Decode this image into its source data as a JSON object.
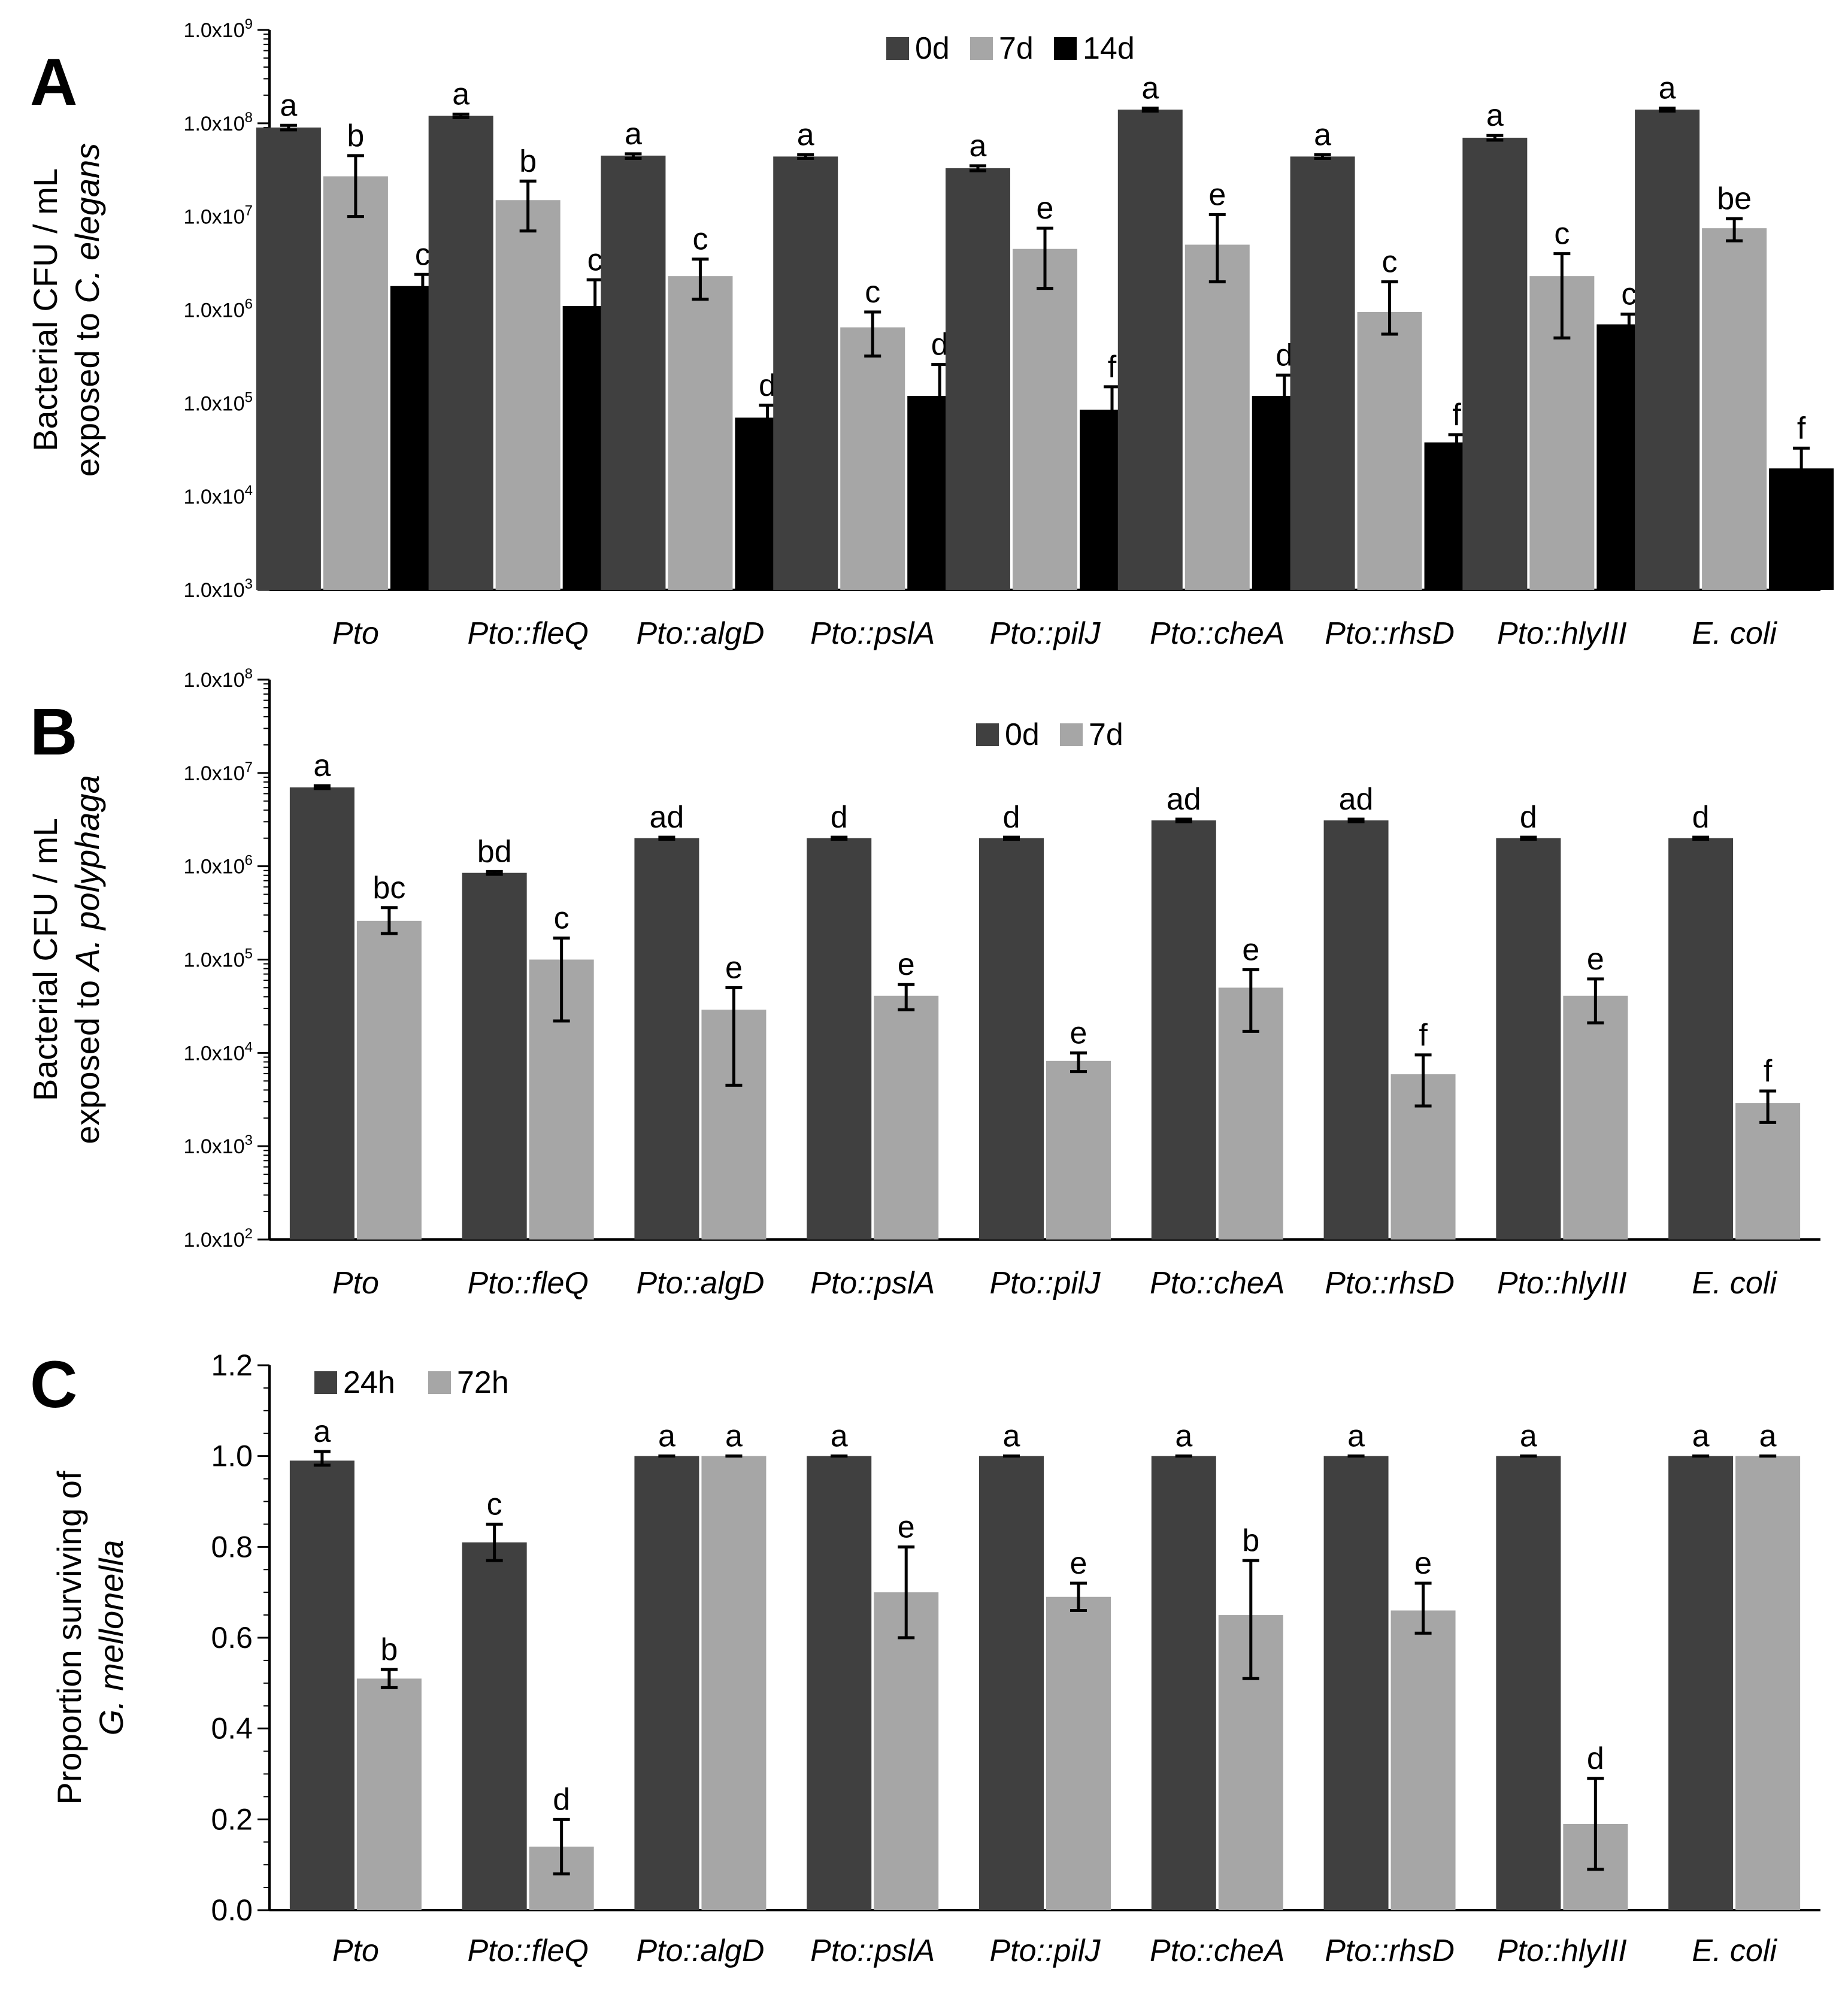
{
  "colors": {
    "dark": "#404040",
    "light": "#a6a6a6",
    "black": "#000000"
  },
  "chart_data": [
    {
      "panel": "A",
      "type": "bar",
      "scale": "log",
      "ylim": [
        1000,
        1000000000
      ],
      "yticks": [
        {
          "value": 1000,
          "base": "1.0x10",
          "exp": "3"
        },
        {
          "value": 10000,
          "base": "1.0x10",
          "exp": "4"
        },
        {
          "value": 100000,
          "base": "1.0x10",
          "exp": "5"
        },
        {
          "value": 1000000,
          "base": "1.0x10",
          "exp": "6"
        },
        {
          "value": 10000000,
          "base": "1.0x10",
          "exp": "7"
        },
        {
          "value": 100000000,
          "base": "1.0x10",
          "exp": "8"
        },
        {
          "value": 1000000000,
          "base": "1.0x10",
          "exp": "9"
        }
      ],
      "ylabel": [
        "Bacterial CFU / mL",
        "exposed to "
      ],
      "ylabel_italic": "C. elegans",
      "categories": [
        "Pto",
        "Pto::fleQ",
        "Pto::algD",
        "Pto::pslA",
        "Pto::pilJ",
        "Pto::cheA",
        "Pto::rhsD",
        "Pto::hlyIII",
        "E. coli"
      ],
      "series": [
        {
          "name": "0d",
          "color": "#404040",
          "values": [
            90000000,
            120000000,
            45000000,
            44000000,
            33000000,
            140000000,
            44000000,
            70000000,
            140000000
          ],
          "err_low": [
            85000000,
            115000000,
            42000000,
            42000000,
            31000000,
            135000000,
            42000000,
            66000000,
            135000000
          ],
          "err_high": [
            95000000,
            125000000,
            47000000,
            46000000,
            35000000,
            145000000,
            46000000,
            74000000,
            145000000
          ],
          "labels": [
            "a",
            "a",
            "a",
            "a",
            "a",
            "a",
            "a",
            "a",
            "a"
          ]
        },
        {
          "name": "7d",
          "color": "#a6a6a6",
          "values": [
            27000000,
            15000000,
            2300000,
            650000,
            4500000,
            5000000,
            950000,
            2300000,
            7500000
          ],
          "err_low": [
            10000000,
            7000000,
            1300000,
            320000,
            1700000,
            2000000,
            550000,
            500000,
            5500000
          ],
          "err_high": [
            45000000,
            24000000,
            3500000,
            950000,
            7500000,
            10500000,
            2000000,
            4000000,
            9500000
          ],
          "labels": [
            "b",
            "b",
            "c",
            "c",
            "e",
            "e",
            "c",
            "c",
            "be"
          ]
        },
        {
          "name": "14d",
          "color": "#000000",
          "values": [
            1800000,
            1100000,
            70000,
            120000,
            85000,
            120000,
            38000,
            700000,
            20000
          ],
          "err_low": [
            1400000,
            700000,
            52000,
            80000,
            55000,
            90000,
            30000,
            560000,
            12000
          ],
          "err_high": [
            2400000,
            2100000,
            95000,
            260000,
            150000,
            200000,
            46000,
            900000,
            33000
          ],
          "labels": [
            "c",
            "c",
            "d",
            "d",
            "f",
            "d",
            "f",
            "c",
            "f"
          ]
        }
      ],
      "legend": [
        "0d",
        "7d",
        "14d"
      ]
    },
    {
      "panel": "B",
      "type": "bar",
      "scale": "log",
      "ylim": [
        100,
        100000000
      ],
      "yticks": [
        {
          "value": 100,
          "base": "1.0x10",
          "exp": "2"
        },
        {
          "value": 1000,
          "base": "1.0x10",
          "exp": "3"
        },
        {
          "value": 10000,
          "base": "1.0x10",
          "exp": "4"
        },
        {
          "value": 100000,
          "base": "1.0x10",
          "exp": "5"
        },
        {
          "value": 1000000,
          "base": "1.0x10",
          "exp": "6"
        },
        {
          "value": 10000000,
          "base": "1.0x10",
          "exp": "7"
        },
        {
          "value": 100000000,
          "base": "1.0x10",
          "exp": "8"
        }
      ],
      "ylabel": [
        "Bacterial CFU / mL",
        "exposed to "
      ],
      "ylabel_italic": "A. polyphaga",
      "categories": [
        "Pto",
        "Pto::fleQ",
        "Pto::algD",
        "Pto::pslA",
        "Pto::pilJ",
        "Pto::cheA",
        "Pto::rhsD",
        "Pto::hlyIII",
        "E. coli"
      ],
      "series": [
        {
          "name": "0d",
          "color": "#404040",
          "values": [
            7000000,
            850000,
            2000000,
            2000000,
            2000000,
            3100000,
            3100000,
            2000000,
            2000000
          ],
          "err_low": [
            6800000,
            820000,
            1950000,
            1950000,
            1950000,
            3000000,
            3000000,
            1950000,
            1950000
          ],
          "err_high": [
            7300000,
            880000,
            2050000,
            2050000,
            2050000,
            3200000,
            3200000,
            2050000,
            2050000
          ],
          "labels": [
            "a",
            "bd",
            "ad",
            "d",
            "d",
            "ad",
            "ad",
            "d",
            "d"
          ]
        },
        {
          "name": "7d",
          "color": "#a6a6a6",
          "values": [
            260000,
            100000,
            29000,
            41000,
            8200,
            50000,
            5900,
            41000,
            2900
          ],
          "err_low": [
            190000,
            22000,
            4500,
            29000,
            6300,
            17000,
            2700,
            21000,
            1800
          ],
          "err_high": [
            360000,
            170000,
            50000,
            54000,
            10000,
            78000,
            9500,
            62000,
            3900
          ],
          "labels": [
            "bc",
            "c",
            "e",
            "e",
            "e",
            "e",
            "f",
            "e",
            "f"
          ]
        }
      ],
      "legend": [
        "0d",
        "7d"
      ]
    },
    {
      "panel": "C",
      "type": "bar",
      "scale": "linear",
      "ylim": [
        0,
        1.2
      ],
      "yticks": [
        {
          "value": 0,
          "label": "0.0"
        },
        {
          "value": 0.2,
          "label": "0.2"
        },
        {
          "value": 0.4,
          "label": "0.4"
        },
        {
          "value": 0.6,
          "label": "0.6"
        },
        {
          "value": 0.8,
          "label": "0.8"
        },
        {
          "value": 1.0,
          "label": "1.0"
        },
        {
          "value": 1.2,
          "label": "1.2"
        }
      ],
      "ylabel": [
        "Proportion surviving of"
      ],
      "ylabel_italic": "G. mellonella",
      "categories": [
        "Pto",
        "Pto::fleQ",
        "Pto::algD",
        "Pto::pslA",
        "Pto::pilJ",
        "Pto::cheA",
        "Pto::rhsD",
        "Pto::hlyIII",
        "E. coli"
      ],
      "series": [
        {
          "name": "24h",
          "color": "#404040",
          "values": [
            0.99,
            0.81,
            1.0,
            1.0,
            1.0,
            1.0,
            1.0,
            1.0,
            1.0
          ],
          "err_low": [
            0.98,
            0.77,
            1.0,
            1.0,
            1.0,
            1.0,
            1.0,
            1.0,
            1.0
          ],
          "err_high": [
            1.01,
            0.85,
            1.0,
            1.0,
            1.0,
            1.0,
            1.0,
            1.0,
            1.0
          ],
          "labels": [
            "a",
            "c",
            "a",
            "a",
            "a",
            "a",
            "a",
            "a",
            "a"
          ]
        },
        {
          "name": "72h",
          "color": "#a6a6a6",
          "values": [
            0.51,
            0.14,
            1.0,
            0.7,
            0.69,
            0.65,
            0.66,
            0.19,
            1.0
          ],
          "err_low": [
            0.49,
            0.08,
            1.0,
            0.6,
            0.66,
            0.51,
            0.61,
            0.09,
            1.0
          ],
          "err_high": [
            0.53,
            0.2,
            1.0,
            0.8,
            0.72,
            0.77,
            0.72,
            0.29,
            1.0
          ],
          "labels": [
            "b",
            "d",
            "a",
            "e",
            "e",
            "b",
            "e",
            "d",
            "a"
          ]
        }
      ],
      "legend": [
        "24h",
        "72h"
      ]
    }
  ]
}
